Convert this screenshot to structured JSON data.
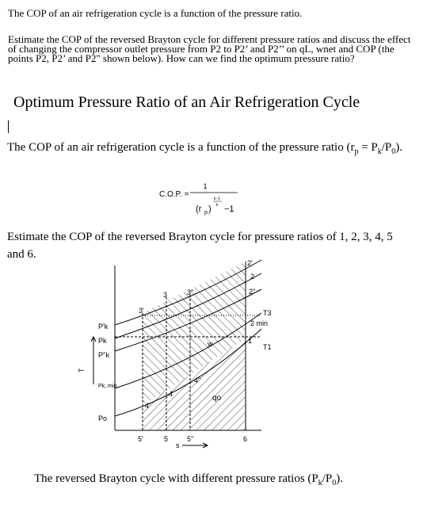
{
  "intro": {
    "line1": "The COP of an air refrigeration cycle is a function of the pressure ratio.",
    "question": "Estimate the COP of the reversed Brayton cycle for different pressure ratios and discuss the effect of changing the compressor outlet pressure from P2 to P2’ and P2’’ on qL, wnet and COP (the points P2, P2’ and P2\" shown below). How can we find the optimum pressure ratio?"
  },
  "heading": "Optimum Pressure Ratio of an Air Refrigeration Cycle",
  "para1": [
    "The COP of an air refrigeration cycle is a function of the pressure ratio (r",
    "p",
    " = P",
    "k",
    "/P",
    "0",
    ")."
  ],
  "formula": {
    "lhs": "C.O.P. =",
    "numerator": "1",
    "base": "(r",
    "base_sub": "p",
    "base_close": ")",
    "exp_num": "k−1",
    "exp_den": "k",
    "minus": "−1"
  },
  "para2": "Estimate the COP of the reversed Brayton cycle for pressure ratios of 1, 2, 3, 4, 5 and 6.",
  "diagram": {
    "p2prime": "2'",
    "p2": "2",
    "p2dprime": "2''",
    "p3prime": "3'",
    "p3": "3",
    "p3dprime": "3''",
    "p2min": "2 min",
    "t3": "T3",
    "t1": "T1",
    "p1": "1",
    "p4dprime": "4''",
    "p4": "4",
    "p4prime": "4'",
    "qo": "qo",
    "w": "w",
    "pk_prime": "P'k",
    "pk": "Pk",
    "pk_dprime": "P''k",
    "pk_min": "Pk, min",
    "po": "Po",
    "s5prime": "5'",
    "s5": "5",
    "s5dprime": "5''",
    "s6": "6",
    "s_axis": "s",
    "t_axis": "T"
  },
  "caption": [
    "The reversed Brayton cycle with different pressure ratios (P",
    "k",
    "/P",
    "0",
    ")."
  ]
}
